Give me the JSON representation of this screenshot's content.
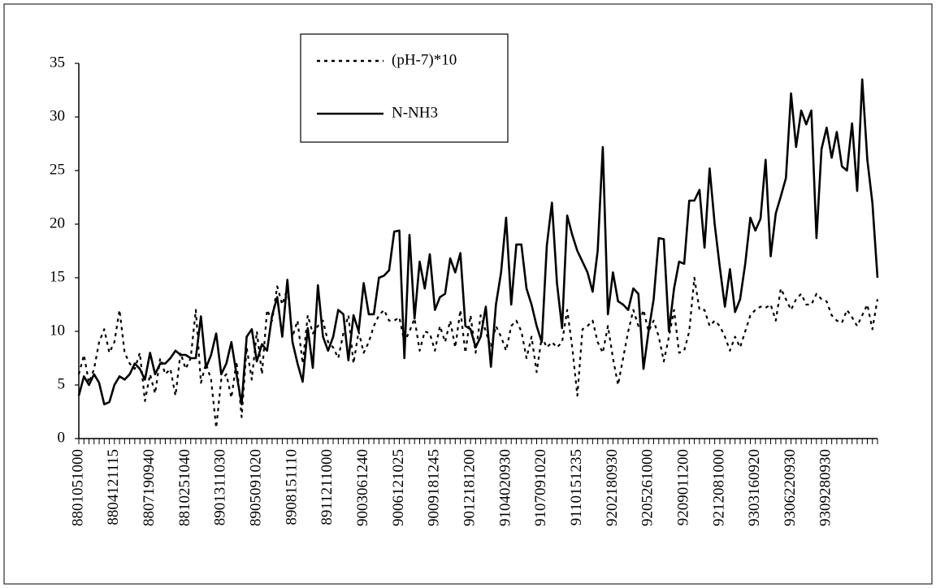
{
  "chart_data": {
    "type": "line",
    "categories": [
      "8801051000",
      null,
      null,
      null,
      null,
      null,
      null,
      "8804121115",
      null,
      null,
      null,
      null,
      null,
      null,
      "8807190940",
      null,
      null,
      null,
      null,
      null,
      null,
      "8810251040",
      null,
      null,
      null,
      null,
      null,
      null,
      "8901311030",
      null,
      null,
      null,
      null,
      null,
      null,
      "8905091020",
      null,
      null,
      null,
      null,
      null,
      null,
      "8908151110",
      null,
      null,
      null,
      null,
      null,
      null,
      "8911211000",
      null,
      null,
      null,
      null,
      null,
      null,
      "9003061240",
      null,
      null,
      null,
      null,
      null,
      null,
      "9006121025",
      null,
      null,
      null,
      null,
      null,
      null,
      "9009181245",
      null,
      null,
      null,
      null,
      null,
      null,
      "9012181200",
      null,
      null,
      null,
      null,
      null,
      null,
      "9104020930",
      null,
      null,
      null,
      null,
      null,
      null,
      "9107091020",
      null,
      null,
      null,
      null,
      null,
      null,
      "9110151235",
      null,
      null,
      null,
      null,
      null,
      null,
      "9202180930",
      null,
      null,
      null,
      null,
      null,
      null,
      "9205261000",
      null,
      null,
      null,
      null,
      null,
      null,
      "9209011200",
      null,
      null,
      null,
      null,
      null,
      null,
      "9212081000",
      null,
      null,
      null,
      null,
      null,
      null,
      "9303160920",
      null,
      null,
      null,
      null,
      null,
      null,
      "9306220930",
      null,
      null,
      null,
      null,
      null,
      null,
      "9309280930",
      null,
      null,
      null,
      null,
      null,
      null,
      null,
      null,
      null,
      null
    ],
    "series": [
      {
        "name": "(pH-7)*10",
        "color": "#000000",
        "style": "dotted",
        "values": [
          6,
          7.8,
          5.2,
          6.5,
          9,
          10.2,
          8,
          9,
          12,
          8,
          7,
          6.5,
          8,
          3.5,
          6,
          4.2,
          7.5,
          6,
          6.5,
          4,
          8,
          6.5,
          7.5,
          12,
          5.2,
          7,
          5.5,
          1,
          5.5,
          6,
          3.8,
          7.2,
          2,
          8.5,
          5.5,
          10,
          6,
          12,
          11,
          14.2,
          12.5,
          14,
          9.5,
          11,
          7,
          11.5,
          9.8,
          10.5,
          11,
          9,
          8.5,
          7.5,
          9.8,
          11.5,
          7,
          10,
          8,
          9,
          10.5,
          11.5,
          12,
          11,
          11,
          11.3,
          9,
          10,
          11.2,
          8.2,
          10,
          9.8,
          8.2,
          10.5,
          9,
          11,
          8.5,
          12,
          8,
          11.5,
          8,
          11.5,
          10,
          8.5,
          10.5,
          9.5,
          8.2,
          10.5,
          11,
          10,
          7.5,
          9.5,
          6.2,
          9.5,
          8.5,
          9,
          8.5,
          9,
          12,
          8.5,
          4,
          10.2,
          10.5,
          11,
          9,
          8,
          10.5,
          7.5,
          5,
          7.5,
          10,
          12,
          10.5,
          12,
          10,
          11,
          9.5,
          7.2,
          9.5,
          12,
          8,
          8.2,
          10,
          15,
          12,
          12,
          10.5,
          11,
          10.5,
          9.5,
          8.2,
          9.5,
          8.5,
          10,
          11.5,
          12,
          12.3,
          12.2,
          12.5,
          11,
          14,
          13,
          12,
          13,
          13.5,
          12.5,
          12.5,
          13.5,
          13,
          12.8,
          11.5,
          11,
          10.8,
          12,
          11.3,
          10.5,
          11.5,
          12.5,
          10.2,
          13
        ]
      },
      {
        "name": "N-NH3",
        "color": "#000000",
        "style": "solid",
        "values": [
          4,
          5.8,
          5,
          6,
          5.2,
          3.2,
          3.4,
          5,
          5.8,
          5.5,
          6,
          7,
          6.5,
          5.5,
          8,
          6,
          7,
          7,
          7.5,
          8.2,
          7.8,
          7.8,
          7.5,
          7.5,
          11.4,
          6.6,
          7.8,
          9.8,
          6,
          7,
          9,
          6,
          3.2,
          9.5,
          10.2,
          7.2,
          8.8,
          8.2,
          11.5,
          13.2,
          9.5,
          14.8,
          9,
          7,
          5.3,
          10.3,
          6.6,
          14.3,
          9.5,
          8.2,
          9.5,
          12,
          11.6,
          7.3,
          11.5,
          10,
          14.5,
          11.6,
          11.6,
          15,
          15.2,
          15.7,
          19.3,
          19.4,
          7.5,
          19,
          11.2,
          16.5,
          14,
          17.2,
          12,
          13.2,
          13.5,
          16.8,
          15.5,
          17.3,
          10.5,
          10.2,
          8.5,
          9.5,
          12.3,
          6.7,
          12.5,
          15.5,
          20.6,
          12.5,
          18.1,
          18.1,
          14,
          12.5,
          10.5,
          9,
          18,
          22,
          14.5,
          10.3,
          20.8,
          19,
          17.5,
          16.5,
          15.5,
          13.7,
          17.5,
          27.2,
          11.6,
          15.5,
          12.8,
          12.5,
          12,
          14,
          13.5,
          6.5,
          10,
          13,
          18.7,
          18.6,
          10,
          14,
          16.5,
          16.3,
          22.2,
          22.2,
          23.2,
          17.8,
          25.2,
          20,
          16,
          12.3,
          15.8,
          11.8,
          13,
          16.3,
          20.6,
          19.4,
          20.5,
          26,
          17,
          21,
          22.6,
          24.3,
          32.2,
          27.2,
          30.6,
          29.3,
          30.6,
          18.7,
          27,
          29,
          26.2,
          28.6,
          25.4,
          25,
          29.4,
          23.1,
          33.5,
          26,
          22,
          15
        ]
      }
    ],
    "ylim": [
      0,
      35
    ],
    "yticks": [
      0,
      5,
      10,
      15,
      20,
      25,
      30,
      35
    ],
    "grid": false
  }
}
